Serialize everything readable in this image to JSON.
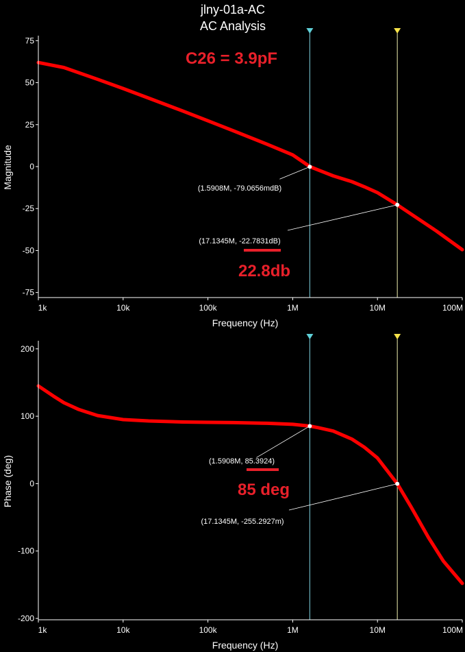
{
  "title": "jlny-01a-AC",
  "subtitle": "AC Analysis",
  "annotations": {
    "capacitor": "C26 = 3.9pF",
    "gain_margin": "22.8db",
    "phase_margin": "85 deg"
  },
  "colors": {
    "background": "#000000",
    "trace": "#ff0000",
    "axis": "#ffffff",
    "annotation": "#e8202a",
    "cursor1": "#7fd3e0",
    "cursor2": "#f2f2b0",
    "cursor_marker1": "#5fd0d8",
    "cursor_marker2": "#f7e34a"
  },
  "cursors": [
    {
      "id": "1",
      "frequency": 1590800,
      "icon": "cursor-1-flag-icon"
    },
    {
      "id": "2",
      "frequency": 17134500,
      "icon": "cursor-2-flag-icon"
    }
  ],
  "chart_data": [
    {
      "type": "line",
      "xlabel": "Frequency (Hz)",
      "ylabel": "Magnitude",
      "xscale": "log",
      "xlim": [
        1000,
        100000000
      ],
      "ylim": [
        -78,
        78
      ],
      "x_ticks": [
        {
          "value": 1000,
          "label": "1k"
        },
        {
          "value": 10000,
          "label": "10k"
        },
        {
          "value": 100000,
          "label": "100k"
        },
        {
          "value": 1000000,
          "label": "1M"
        },
        {
          "value": 10000000,
          "label": "10M"
        },
        {
          "value": 100000000,
          "label": "100M"
        }
      ],
      "y_ticks": [
        {
          "value": 75,
          "label": "75"
        },
        {
          "value": 50,
          "label": "50"
        },
        {
          "value": 25,
          "label": "25"
        },
        {
          "value": 0,
          "label": "0"
        },
        {
          "value": -25,
          "label": "-25"
        },
        {
          "value": -50,
          "label": "-50"
        },
        {
          "value": -75,
          "label": "-75"
        }
      ],
      "grid": false,
      "series": [
        {
          "x": [
            1000,
            2000,
            5000,
            10000,
            20000,
            50000,
            100000,
            200000,
            500000,
            1000000,
            1590800,
            2000000,
            3000000,
            5000000,
            7000000,
            10000000,
            17134500,
            30000000,
            50000000,
            100000000
          ],
          "y": [
            62,
            59,
            52,
            46.5,
            40.8,
            33.2,
            27.3,
            21.3,
            13.3,
            7,
            0,
            -2,
            -5.5,
            -9,
            -12,
            -15.5,
            -22.8,
            -31,
            -38.5,
            -49.5
          ]
        }
      ],
      "cursor_labels": [
        {
          "x": 1590800,
          "y": -0.0791,
          "text": "(1.5908M, -79.0656mdB)"
        },
        {
          "x": 17134500,
          "y": -22.7831,
          "text": "(17.1345M, -22.7831dB)"
        }
      ]
    },
    {
      "type": "line",
      "xlabel": "Frequency (Hz)",
      "ylabel": "Phase (deg)",
      "xscale": "log",
      "xlim": [
        1000,
        100000000
      ],
      "ylim": [
        -202,
        212
      ],
      "x_ticks": [
        {
          "value": 1000,
          "label": "1k"
        },
        {
          "value": 10000,
          "label": "10k"
        },
        {
          "value": 100000,
          "label": "100k"
        },
        {
          "value": 1000000,
          "label": "1M"
        },
        {
          "value": 10000000,
          "label": "10M"
        },
        {
          "value": 100000000,
          "label": "100M"
        }
      ],
      "y_ticks": [
        {
          "value": 200,
          "label": "200"
        },
        {
          "value": 100,
          "label": "100"
        },
        {
          "value": 0,
          "label": "0"
        },
        {
          "value": -100,
          "label": "-100"
        },
        {
          "value": -200,
          "label": "-200"
        }
      ],
      "grid": false,
      "series": [
        {
          "x": [
            1000,
            1500,
            2000,
            3000,
            5000,
            10000,
            20000,
            50000,
            100000,
            200000,
            500000,
            1000000,
            1590800,
            2000000,
            3000000,
            5000000,
            7000000,
            10000000,
            17134500,
            25000000,
            40000000,
            60000000,
            100000000
          ],
          "y": [
            145,
            130,
            120,
            110,
            101,
            95,
            93,
            91.5,
            91,
            90.5,
            89.5,
            88,
            85.4,
            83,
            78,
            66,
            54,
            38,
            -0.26,
            -35,
            -80,
            -115,
            -148
          ]
        }
      ],
      "cursor_labels": [
        {
          "x": 1590800,
          "y": 85.3924,
          "text": "(1.5908M, 85.3924)"
        },
        {
          "x": 17134500,
          "y": -0.2553,
          "text": "(17.1345M, -255.2927m)"
        }
      ]
    }
  ]
}
